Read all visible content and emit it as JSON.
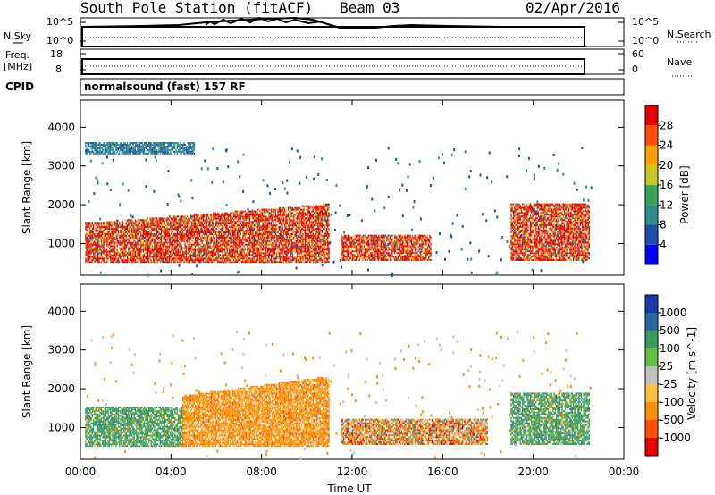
{
  "header": {
    "station": "South Pole Station (fitACF)",
    "beam": "Beam 03",
    "date": "02/Apr/2016"
  },
  "strip_labels": {
    "nsky": "N.Sky",
    "nsky_top": "10^5",
    "nsky_bottom": "10^0",
    "nsearch": "N.Search",
    "nsearch_top": "10^5",
    "nsearch_bottom": "10^0",
    "freq_line1": "Freq.",
    "freq_line2": "[MHz]",
    "freq_top": "18",
    "freq_bottom": "8",
    "nave": "Nave",
    "nave_top": "60",
    "nave_bottom": "0",
    "cpid": "CPID",
    "cpid_value": "normalsound (fast) 157 RF"
  },
  "chart_data": [
    {
      "type": "heatmap",
      "title": "",
      "xlabel": "",
      "ylabel": "Slant Range [km]",
      "x_ticks": [
        "00:00",
        "04:00",
        "08:00",
        "12:00",
        "16:00",
        "20:00",
        "00:00"
      ],
      "xlim_hours": [
        0,
        24
      ],
      "y_ticks": [
        1000,
        2000,
        3000,
        4000
      ],
      "ylim": [
        180,
        4700
      ],
      "colorbar": {
        "label": "Power [dB]",
        "ticks": [
          "28",
          "24",
          "20",
          "16",
          "12",
          "8",
          "4"
        ],
        "colors": [
          "#0000ff",
          "#1f4fa8",
          "#2f8f8f",
          "#3aa35a",
          "#c8c820",
          "#ffa000",
          "#ff5000",
          "#e60000"
        ]
      },
      "bands": [
        {
          "start": 0.2,
          "end": 11.0,
          "low": 500,
          "high": 1500,
          "value": "high"
        },
        {
          "start": 11.5,
          "end": 15.5,
          "low": 550,
          "high": 1200,
          "value": "high"
        },
        {
          "start": 19.0,
          "end": 22.5,
          "low": 550,
          "high": 2000,
          "value": "high"
        },
        {
          "start": 0.2,
          "end": 5.0,
          "low": 3300,
          "high": 3600,
          "value": "low"
        }
      ]
    },
    {
      "type": "heatmap",
      "title": "",
      "xlabel": "Time UT",
      "ylabel": "Slant Range [km]",
      "x_ticks": [
        "00:00",
        "04:00",
        "08:00",
        "12:00",
        "16:00",
        "20:00",
        "00:00"
      ],
      "xlim_hours": [
        0,
        24
      ],
      "y_ticks": [
        1000,
        2000,
        3000,
        4000
      ],
      "ylim": [
        180,
        4700
      ],
      "colorbar": {
        "label": "Velocity [m s^-1]",
        "ticks": [
          "1000",
          "500",
          "100",
          "25",
          "-25",
          "-100",
          "-500",
          "-1000"
        ],
        "colors": [
          "#e60000",
          "#ff5000",
          "#ff9000",
          "#ffc040",
          "#c0c0c0",
          "#60c040",
          "#3a9a60",
          "#2a6aa0",
          "#1a3ab0"
        ]
      },
      "bands": [
        {
          "start": 0.2,
          "end": 4.5,
          "low": 500,
          "high": 1500,
          "value": "positive"
        },
        {
          "start": 4.5,
          "end": 11.0,
          "low": 500,
          "high": 1800,
          "value": "negative"
        },
        {
          "start": 11.5,
          "end": 18.0,
          "low": 550,
          "high": 1200,
          "value": "mixed"
        },
        {
          "start": 19.0,
          "end": 22.5,
          "low": 550,
          "high": 1900,
          "value": "positive"
        }
      ]
    }
  ]
}
